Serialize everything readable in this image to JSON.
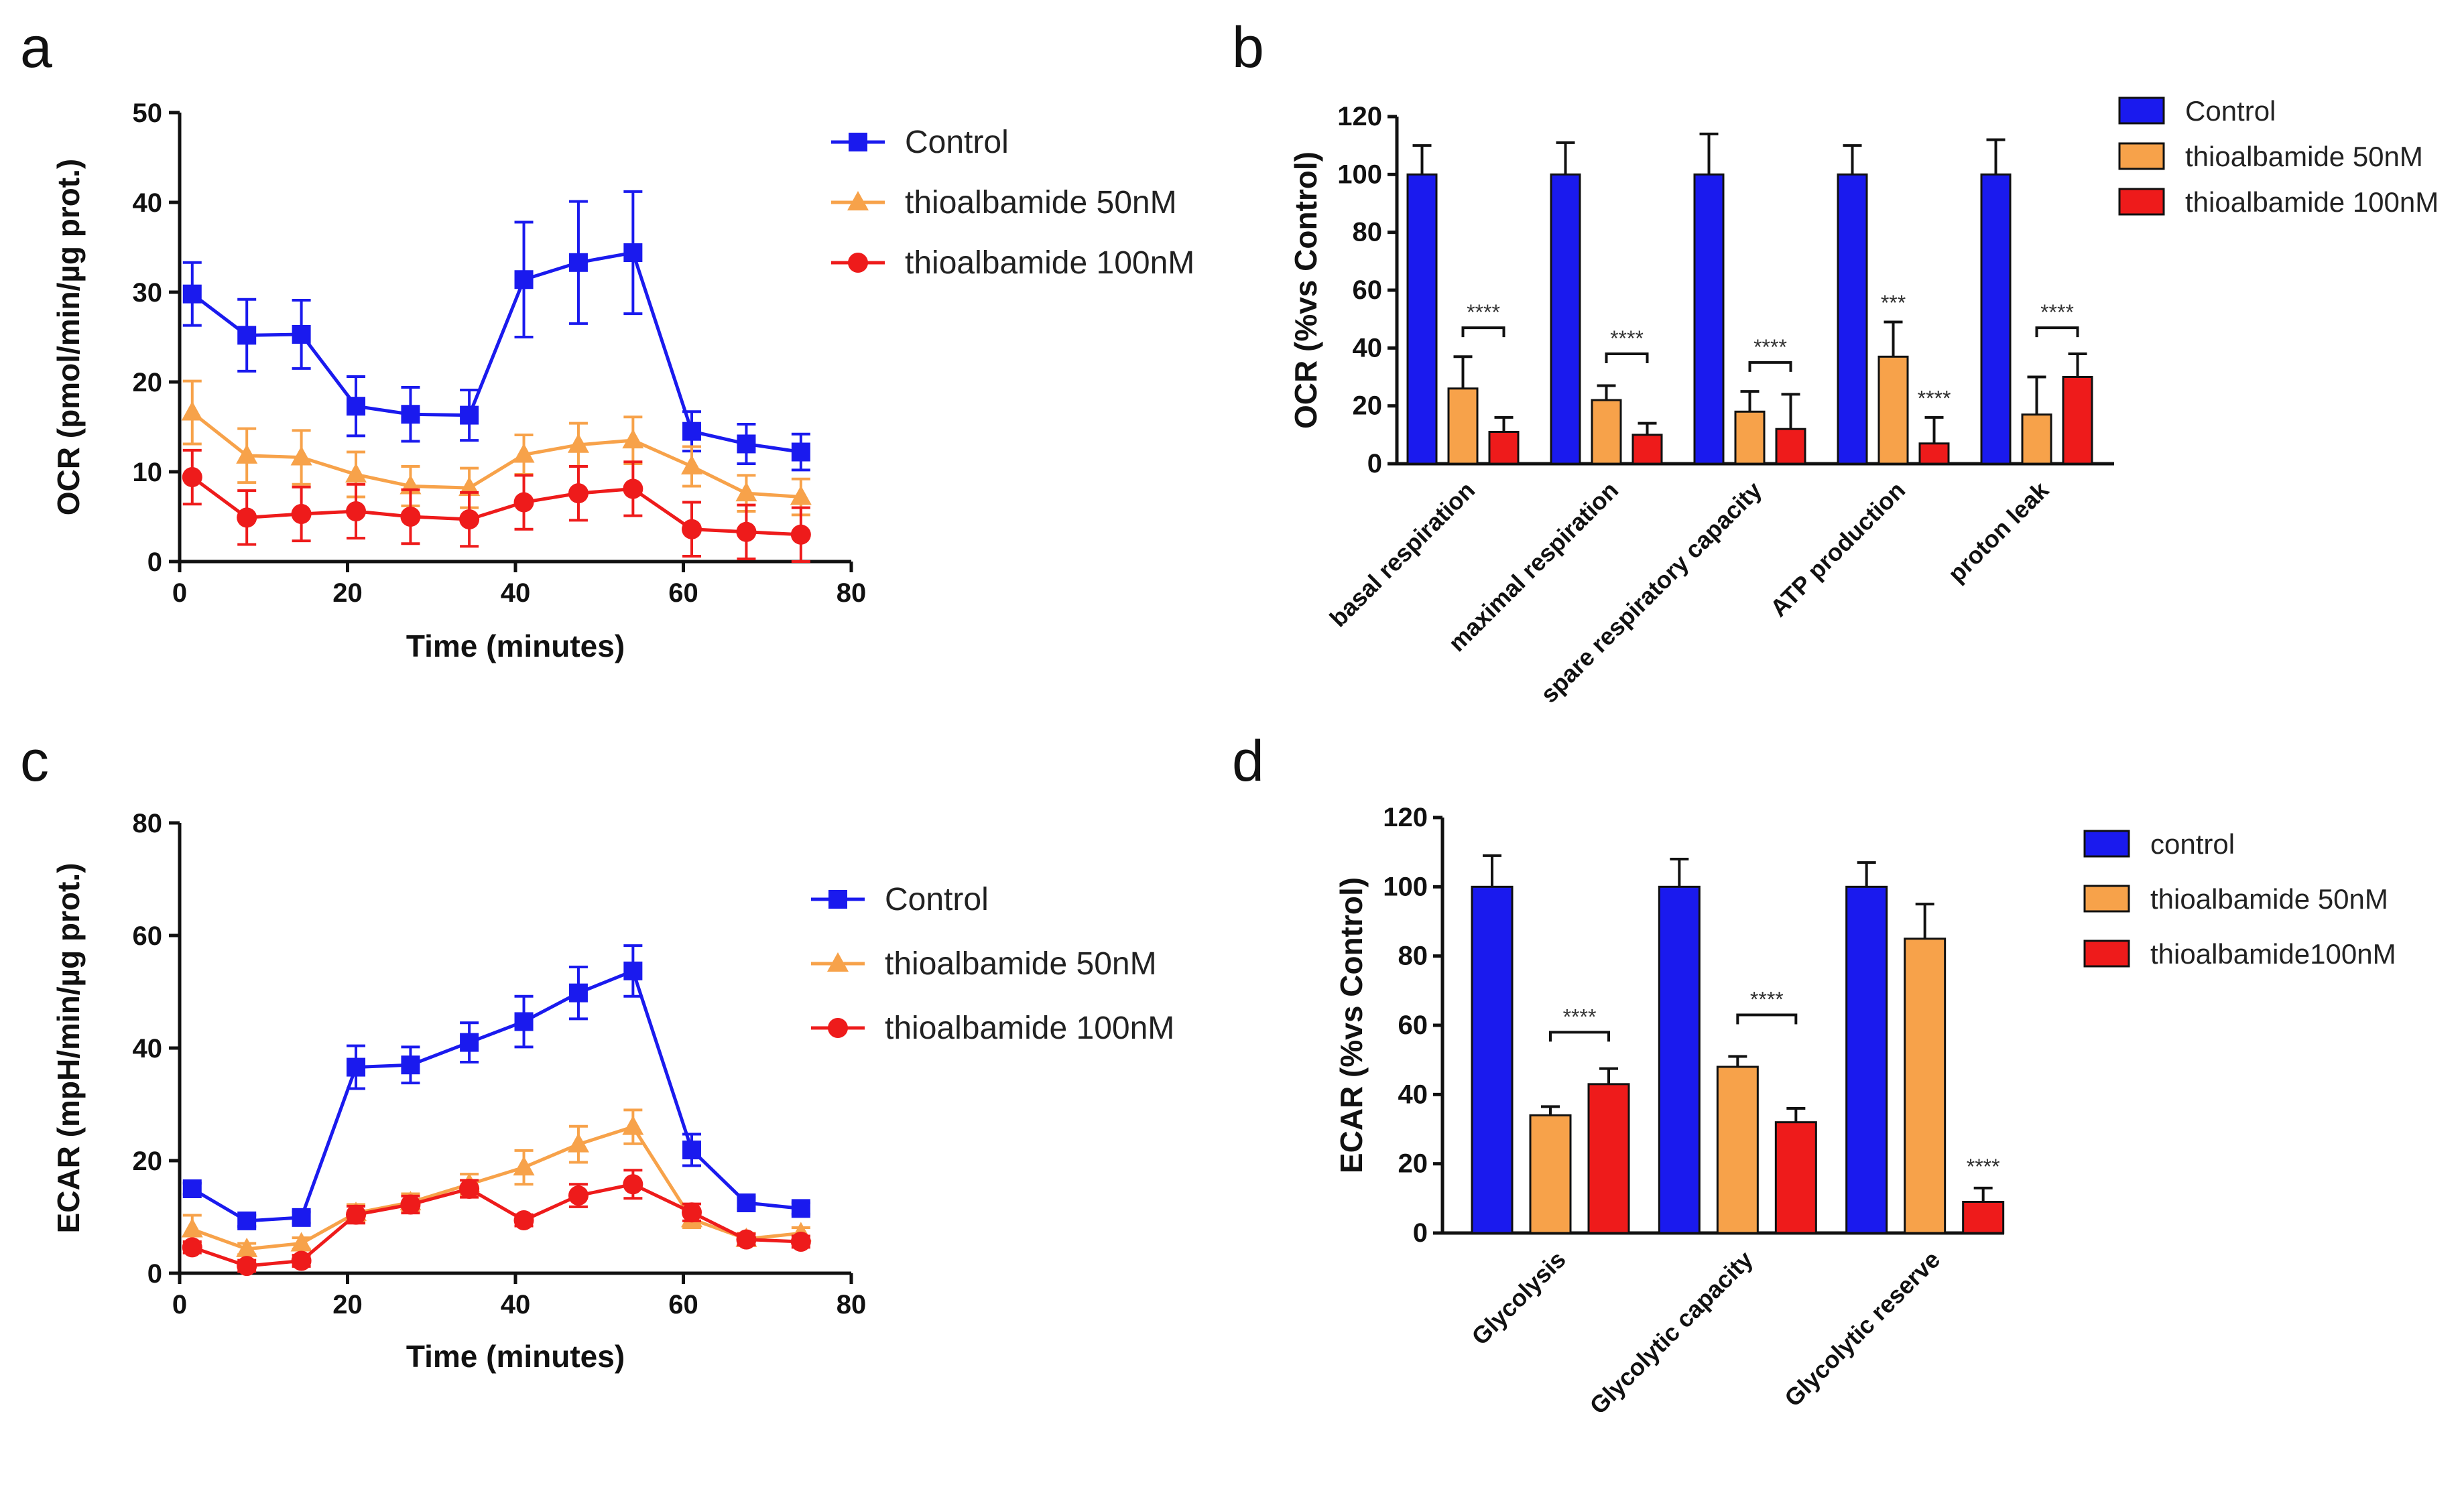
{
  "colors": {
    "control": "#1a1aee",
    "thio50": "#f7a24a",
    "thio100": "#ee1b1b",
    "axis": "#111111"
  },
  "chart_data": [
    {
      "panel": "a",
      "type": "line",
      "xlabel": "Time (minutes)",
      "ylabel": "OCR (pmol/min/µg prot.)",
      "xlim": [
        0,
        80
      ],
      "ylim": [
        0,
        50
      ],
      "xticks": [
        0,
        20,
        40,
        60,
        80
      ],
      "yticks": [
        0,
        10,
        20,
        30,
        40,
        50
      ],
      "x": [
        1.5,
        8,
        14.5,
        21,
        27.5,
        34.5,
        41,
        47.5,
        54,
        61,
        67.5,
        74
      ],
      "series": [
        {
          "name": "Control",
          "marker": "square",
          "color_key": "control",
          "values": [
            29.8,
            25.2,
            25.3,
            17.3,
            16.4,
            16.3,
            31.4,
            33.3,
            34.4,
            14.5,
            13.1,
            12.2
          ],
          "errors": [
            3.5,
            4.0,
            3.8,
            3.3,
            3.0,
            2.8,
            6.4,
            6.8,
            6.8,
            2.2,
            2.2,
            2.0
          ]
        },
        {
          "name": "thioalbamide 50nM",
          "marker": "triangle",
          "color_key": "thio50",
          "values": [
            16.6,
            11.8,
            11.6,
            9.7,
            8.4,
            8.2,
            11.9,
            13.0,
            13.5,
            10.6,
            7.6,
            7.2
          ],
          "errors": [
            3.5,
            3.0,
            3.0,
            2.5,
            2.2,
            2.2,
            2.2,
            2.4,
            2.6,
            2.2,
            2.0,
            2.0
          ]
        },
        {
          "name": "thioalbamide 100nM",
          "marker": "circle",
          "color_key": "thio100",
          "values": [
            9.4,
            4.9,
            5.3,
            5.6,
            5.0,
            4.7,
            6.6,
            7.6,
            8.1,
            3.6,
            3.3,
            3.0
          ],
          "errors": [
            3.0,
            3.0,
            3.0,
            3.0,
            3.0,
            3.0,
            3.0,
            3.0,
            3.0,
            3.0,
            3.0,
            3.0
          ]
        }
      ]
    },
    {
      "panel": "b",
      "type": "bar",
      "ylabel": "OCR (%vs Control)",
      "ylim": [
        0,
        120
      ],
      "yticks": [
        0,
        20,
        40,
        60,
        80,
        100,
        120
      ],
      "categories": [
        "basal respiration",
        "maximal respiration",
        "spare respiratory capacity",
        "ATP production",
        "proton leak"
      ],
      "series": [
        {
          "name": "Control",
          "color_key": "control",
          "values": [
            100,
            100,
            100,
            100,
            100
          ],
          "errors": [
            10,
            11,
            14,
            10,
            12
          ]
        },
        {
          "name": "thioalbamide 50nM",
          "color_key": "thio50",
          "values": [
            26,
            22,
            18,
            37,
            17
          ],
          "errors": [
            11,
            5,
            7,
            12,
            13
          ]
        },
        {
          "name": "thioalbamide 100nM",
          "color_key": "thio100",
          "values": [
            11,
            10,
            12,
            7,
            30
          ],
          "errors": [
            5,
            4,
            12,
            9,
            8
          ]
        }
      ],
      "annotations": [
        {
          "text": "****",
          "type": "bracket",
          "category": 0,
          "y": 47
        },
        {
          "text": "****",
          "type": "bracket",
          "category": 1,
          "y": 38
        },
        {
          "text": "****",
          "type": "bracket",
          "category": 2,
          "y": 35
        },
        {
          "text": "***",
          "type": "star",
          "category": 3,
          "series": 1,
          "y": 53
        },
        {
          "text": "****",
          "type": "star",
          "category": 3,
          "series": 2,
          "y": 20
        },
        {
          "text": "****",
          "type": "bracket",
          "category": 4,
          "y": 47
        }
      ]
    },
    {
      "panel": "c",
      "type": "line",
      "xlabel": "Time (minutes)",
      "ylabel": "ECAR (mpH/min/µg prot.)",
      "xlim": [
        0,
        80
      ],
      "ylim": [
        0,
        80
      ],
      "xticks": [
        0,
        20,
        40,
        60,
        80
      ],
      "yticks": [
        0,
        20,
        40,
        60,
        80
      ],
      "x": [
        1.5,
        8,
        14.5,
        21,
        27.5,
        34.5,
        41,
        47.5,
        54,
        61,
        67.5,
        74
      ],
      "series": [
        {
          "name": "Control",
          "marker": "square",
          "color_key": "control",
          "values": [
            15.0,
            9.3,
            9.9,
            36.6,
            37.0,
            41.0,
            44.7,
            49.8,
            53.7,
            21.9,
            12.5,
            11.5
          ],
          "errors": [
            1.0,
            1.0,
            1.0,
            3.8,
            3.2,
            3.5,
            4.5,
            4.6,
            4.5,
            2.8,
            1.0,
            1.0
          ]
        },
        {
          "name": "thioalbamide 50nM",
          "marker": "triangle",
          "color_key": "thio50",
          "values": [
            7.8,
            4.3,
            5.3,
            10.7,
            12.6,
            15.8,
            18.8,
            22.9,
            26.0,
            9.6,
            6.1,
            7.1
          ],
          "errors": [
            2.5,
            1.0,
            1.0,
            1.5,
            1.5,
            1.8,
            3.0,
            3.2,
            3.0,
            1.5,
            1.0,
            1.0
          ]
        },
        {
          "name": "thioalbamide 100nM",
          "marker": "circle",
          "color_key": "thio100",
          "values": [
            4.6,
            1.3,
            2.2,
            10.4,
            12.2,
            15.0,
            9.4,
            13.8,
            15.8,
            10.8,
            6.0,
            5.6
          ],
          "errors": [
            1.0,
            1.0,
            1.0,
            1.5,
            1.5,
            1.5,
            1.0,
            2.0,
            2.5,
            1.5,
            1.0,
            1.0
          ]
        }
      ]
    },
    {
      "panel": "d",
      "type": "bar",
      "ylabel": "ECAR (%vs Control)",
      "ylim": [
        0,
        120
      ],
      "yticks": [
        0,
        20,
        40,
        60,
        80,
        100,
        120
      ],
      "categories": [
        "Glycolysis",
        "Glycolytic capacity",
        "Glycolytic reserve"
      ],
      "series": [
        {
          "name": "control",
          "color_key": "control",
          "values": [
            100,
            100,
            100
          ],
          "errors": [
            9,
            8,
            7
          ]
        },
        {
          "name": "thioalbamide 50nM",
          "color_key": "thio50",
          "values": [
            34,
            48,
            85
          ],
          "errors": [
            2.5,
            3,
            10
          ]
        },
        {
          "name": "thioalbamide100nM",
          "color_key": "thio100",
          "values": [
            43,
            32,
            9
          ],
          "errors": [
            4.5,
            4,
            4
          ]
        }
      ],
      "annotations": [
        {
          "text": "****",
          "type": "bracket",
          "category": 0,
          "y": 58
        },
        {
          "text": "****",
          "type": "bracket",
          "category": 1,
          "y": 63
        },
        {
          "text": "****",
          "type": "star",
          "category": 2,
          "series": 2,
          "y": 17
        }
      ]
    }
  ],
  "panel_labels": {
    "a": "a",
    "b": "b",
    "c": "c",
    "d": "d"
  }
}
